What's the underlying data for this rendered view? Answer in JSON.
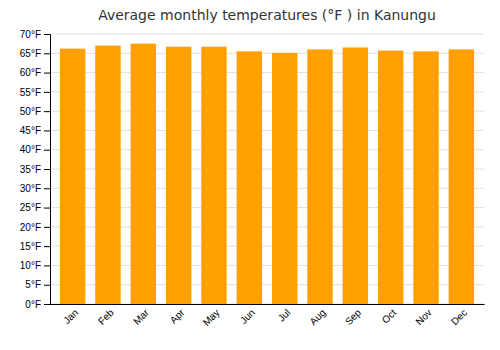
{
  "chart_data": {
    "type": "bar",
    "title": "Average monthly temperatures (°F ) in Kanungu",
    "categories": [
      "Jan",
      "Feb",
      "Mar",
      "Apr",
      "May",
      "Jun",
      "Jul",
      "Aug",
      "Sep",
      "Oct",
      "Nov",
      "Dec"
    ],
    "values": [
      66.2,
      67.0,
      67.5,
      66.7,
      66.7,
      65.5,
      65.1,
      66.0,
      66.5,
      65.7,
      65.5,
      66.0
    ],
    "color": "#FFA000",
    "ylim": [
      0,
      70
    ],
    "yticks": [
      {
        "value": 0,
        "label": "0°F"
      },
      {
        "value": 5,
        "label": "5°F"
      },
      {
        "value": 10,
        "label": "10°F"
      },
      {
        "value": 15,
        "label": "15°F"
      },
      {
        "value": 20,
        "label": "20°F"
      },
      {
        "value": 25,
        "label": "25°F"
      },
      {
        "value": 30,
        "label": "30°F"
      },
      {
        "value": 35,
        "label": "35°F"
      },
      {
        "value": 40,
        "label": "40°F"
      },
      {
        "value": 45,
        "label": "45°F"
      },
      {
        "value": 50,
        "label": "50°F"
      },
      {
        "value": 55,
        "label": "55°F"
      },
      {
        "value": 60,
        "label": "60°F"
      },
      {
        "value": 65,
        "label": "65°F"
      },
      {
        "value": 70,
        "label": "70°F"
      }
    ],
    "grid": true
  }
}
